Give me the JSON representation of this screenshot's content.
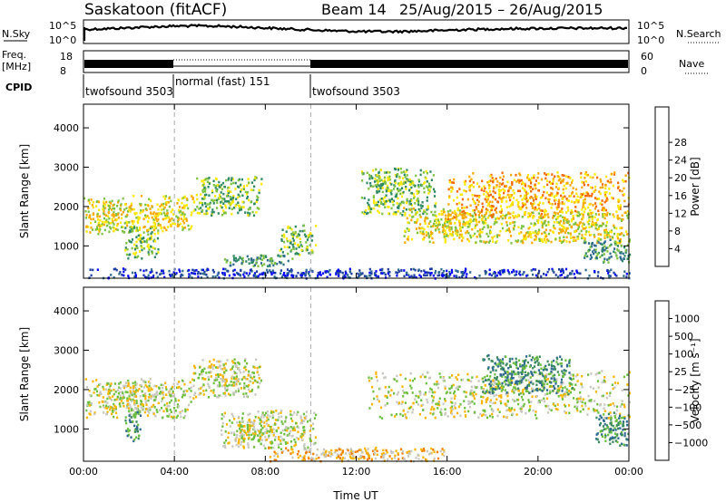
{
  "header": {
    "site": "Saskatoon",
    "product": "(fitACF)",
    "beam": "Beam 14",
    "dates": "25/Aug/2015 – 26/Aug/2015"
  },
  "top_panels": {
    "nsky_label": "N.Sky",
    "nsky_ticks": [
      "10^5",
      "10^0"
    ],
    "nsearch_label": "N.Search",
    "nsearch_ticks": [
      "10^5",
      "10^0"
    ],
    "freq_label": "Freq.",
    "freq_unit": "[MHz]",
    "freq_ticks": [
      "18",
      "8"
    ],
    "nave_label": "Nave",
    "nave_ticks": [
      "60",
      "0"
    ],
    "cpid_label": "CPID",
    "modes": [
      {
        "label": "twofsound 3503",
        "start_hour": 0
      },
      {
        "label": "normal (fast) 151",
        "start_hour": 4
      },
      {
        "label": "twofsound 3503",
        "start_hour": 10
      }
    ]
  },
  "chart_data": [
    {
      "type": "heatmap",
      "name": "power",
      "ylabel": "Slant Range [km]",
      "yticks": [
        1000,
        2000,
        3000,
        4000
      ],
      "xticks": [
        "00:00",
        "04:00",
        "08:00",
        "12:00",
        "16:00",
        "20:00",
        "00:00"
      ],
      "xlim": [
        0,
        24
      ],
      "ylim": [
        180,
        4600
      ],
      "colorbar": {
        "label": "Power [dB]",
        "ticks": [
          "4",
          "8",
          "12",
          "16",
          "20",
          "24",
          "28"
        ],
        "colors": [
          "#0000ff",
          "#1e3d9e",
          "#2e6b8e",
          "#2f8a63",
          "#7fc241",
          "#ffe800",
          "#f7a900",
          "#f26a00",
          "#e00000"
        ]
      },
      "regions": [
        {
          "t0": 0.0,
          "t1": 2.2,
          "r0": 1300,
          "r1": 2250,
          "level": 5
        },
        {
          "t0": 1.8,
          "t1": 3.3,
          "r0": 700,
          "r1": 1500,
          "level": 4
        },
        {
          "t0": 2.0,
          "t1": 4.8,
          "r0": 1400,
          "r1": 2300,
          "level": 5
        },
        {
          "t0": 4.8,
          "t1": 7.8,
          "r0": 1800,
          "r1": 2800,
          "level": 4
        },
        {
          "t0": 6.0,
          "t1": 9.2,
          "r0": 500,
          "r1": 800,
          "level": 3
        },
        {
          "t0": 8.6,
          "t1": 10.2,
          "r0": 800,
          "r1": 1550,
          "level": 4
        },
        {
          "t0": 12.2,
          "t1": 15.5,
          "r0": 1800,
          "r1": 3000,
          "level": 4
        },
        {
          "t0": 14.0,
          "t1": 18.5,
          "r0": 1100,
          "r1": 2000,
          "level": 5
        },
        {
          "t0": 16.0,
          "t1": 24.0,
          "r0": 1700,
          "r1": 2900,
          "level": 6
        },
        {
          "t0": 18.5,
          "t1": 24.0,
          "r0": 1100,
          "r1": 1900,
          "level": 5
        },
        {
          "t0": 22.0,
          "t1": 24.0,
          "r0": 600,
          "r1": 1200,
          "level": 3
        },
        {
          "t0": 0.0,
          "t1": 24.0,
          "r0": 200,
          "r1": 450,
          "level": 1
        }
      ]
    },
    {
      "type": "heatmap",
      "name": "velocity",
      "ylabel": "Slant Range [km]",
      "yticks": [
        1000,
        2000,
        3000,
        4000
      ],
      "xticks": [
        "00:00",
        "04:00",
        "08:00",
        "12:00",
        "16:00",
        "20:00",
        "00:00"
      ],
      "xlabel": "Time UT",
      "xlim": [
        0,
        24
      ],
      "ylim": [
        180,
        4600
      ],
      "colorbar": {
        "label": "Velocity [m s⁻¹]",
        "ticks": [
          "1000",
          "500",
          "100",
          "25",
          "−25",
          "−100",
          "−500",
          "−1000"
        ],
        "colors": [
          "#1f3fa8",
          "#2e6b8e",
          "#3c8c5f",
          "#6fc041",
          "#c8c8c0",
          "#f7b500",
          "#f28000",
          "#ee4400",
          "#e00000"
        ]
      },
      "regions": [
        {
          "t0": 0.0,
          "t1": 4.8,
          "r0": 1300,
          "r1": 2300,
          "level": 4
        },
        {
          "t0": 1.8,
          "t1": 2.5,
          "r0": 700,
          "r1": 1500,
          "level": 2
        },
        {
          "t0": 4.8,
          "t1": 7.8,
          "r0": 1800,
          "r1": 2800,
          "level": 4
        },
        {
          "t0": 6.0,
          "t1": 10.2,
          "r0": 500,
          "r1": 1500,
          "level": 4
        },
        {
          "t0": 12.5,
          "t1": 24.0,
          "r0": 1300,
          "r1": 2500,
          "level": 4
        },
        {
          "t0": 17.5,
          "t1": 21.5,
          "r0": 1900,
          "r1": 2900,
          "level": 2
        },
        {
          "t0": 22.5,
          "t1": 24.0,
          "r0": 600,
          "r1": 1500,
          "level": 2
        },
        {
          "t0": 8.0,
          "t1": 16.0,
          "r0": 200,
          "r1": 550,
          "level": 5
        }
      ]
    }
  ]
}
